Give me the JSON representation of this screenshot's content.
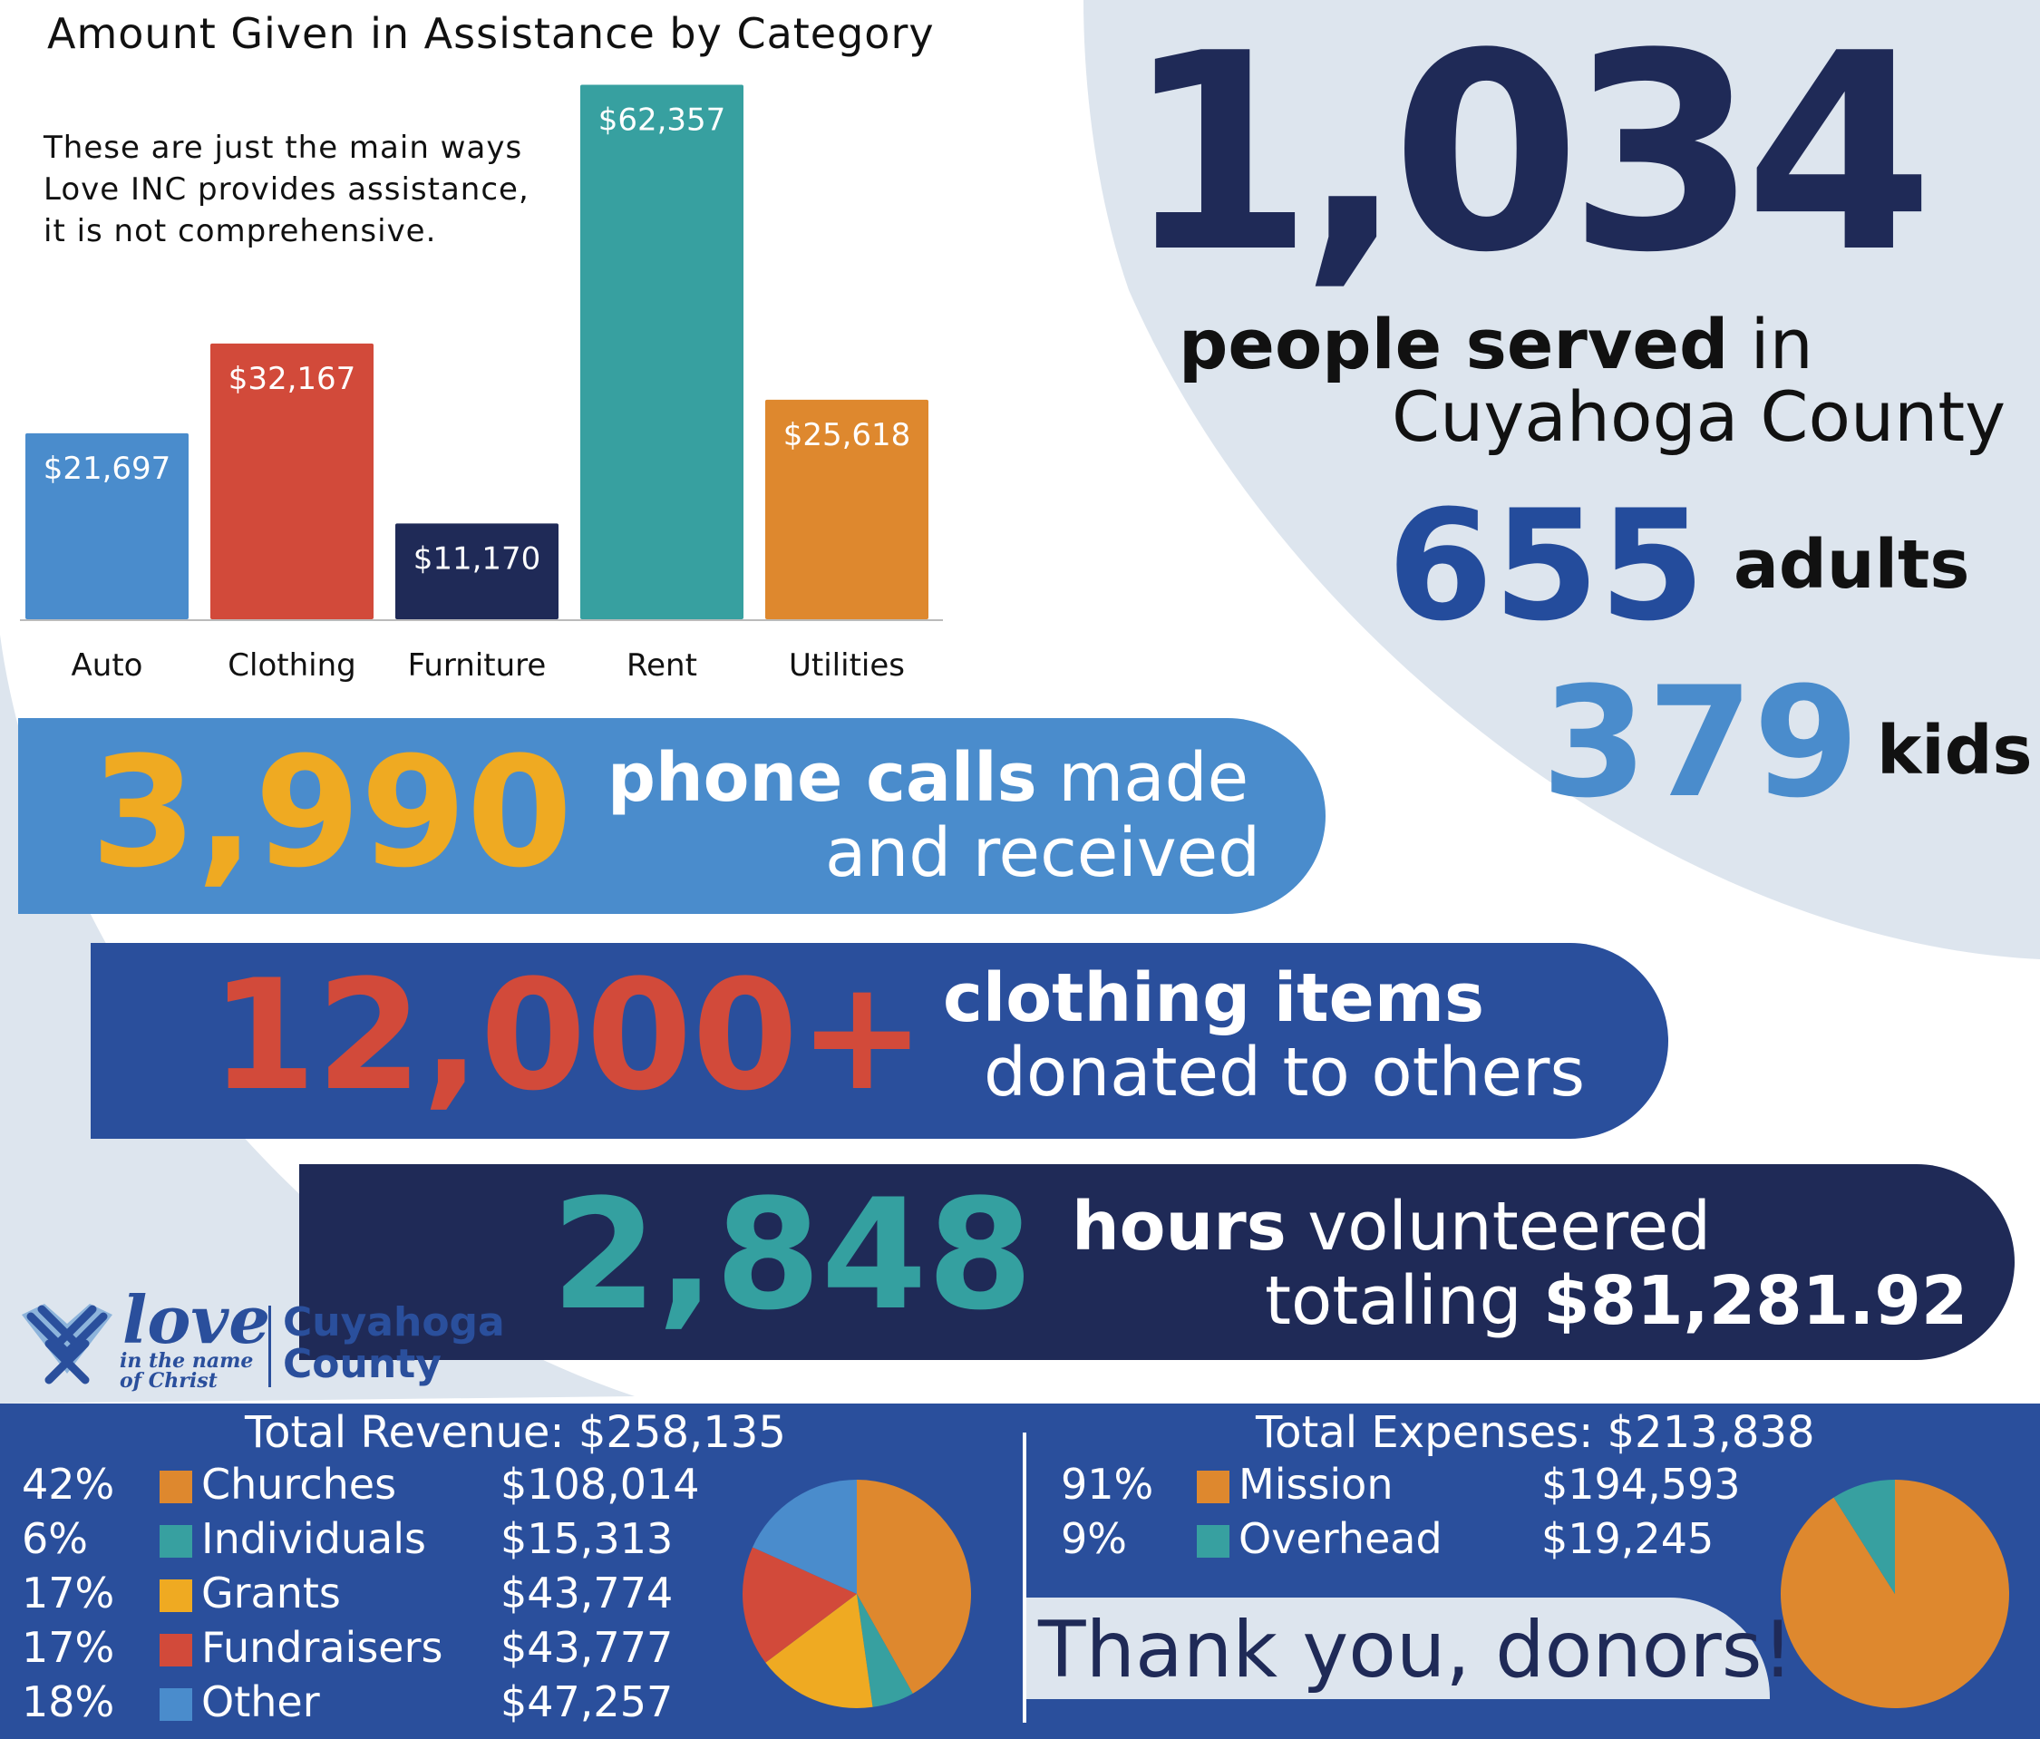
{
  "colors": {
    "navy": "#1f2a57",
    "royal": "#2a4f9c",
    "sky": "#4a8ccc",
    "red": "#d24a3a",
    "teal": "#34a0a0",
    "orange": "#de882e",
    "gold": "#efaa22",
    "light_bg": "#dde5ee"
  },
  "chart_data": [
    {
      "type": "bar",
      "title": "Amount Given in Assistance by Category",
      "categories": [
        "Auto",
        "Clothing",
        "Furniture",
        "Rent",
        "Utilities"
      ],
      "values": [
        21697,
        32167,
        11170,
        62357,
        25618
      ],
      "labels": [
        "$21,697",
        "$32,167",
        "$11,170",
        "$62,357",
        "$25,618"
      ],
      "colors": [
        "#4a8ccc",
        "#d24a3a",
        "#1f2a57",
        "#37a0a0",
        "#de882e"
      ],
      "ylim": [
        0,
        64000
      ],
      "grid": false,
      "note": "These are just the main ways\nLove INC provides assistance,\nit is not comprehensive."
    },
    {
      "type": "pie",
      "title": "Total Revenue: $258,135",
      "slices": [
        {
          "label": "Churches",
          "percent_label": "42%",
          "amount_label": "$108,014",
          "value": 108014,
          "color": "#de882e"
        },
        {
          "label": "Individuals",
          "percent_label": "6%",
          "amount_label": "$15,313",
          "value": 15313,
          "color": "#37a0a0"
        },
        {
          "label": "Grants",
          "percent_label": "17%",
          "amount_label": "$43,774",
          "value": 43774,
          "color": "#efaa22"
        },
        {
          "label": "Fundraisers",
          "percent_label": "17%",
          "amount_label": "$43,777",
          "value": 43777,
          "color": "#d24a3a"
        },
        {
          "label": "Other",
          "percent_label": "18%",
          "amount_label": "$47,257",
          "value": 47257,
          "color": "#4a8ccc"
        }
      ]
    },
    {
      "type": "pie",
      "title": "Total Expenses: $213,838",
      "slices": [
        {
          "label": "Mission",
          "percent_label": "91%",
          "amount_label": "$194,593",
          "value": 194593,
          "color": "#de882e"
        },
        {
          "label": "Overhead",
          "percent_label": "9%",
          "amount_label": "$19,245",
          "value": 19245,
          "color": "#37a0a0"
        }
      ]
    }
  ],
  "stats": {
    "people_num": "1,034",
    "people_label_bold": "people served",
    "people_label_rest": " in",
    "county_label": "Cuyahoga County",
    "adults_num": "655",
    "adults_label": "adults",
    "kids_num": "379",
    "kids_label": "kids",
    "calls_num": "3,990",
    "calls_bold": "phone calls",
    "calls_rest": " made",
    "calls_l2": "and received",
    "clothes_num": "12,000+",
    "clothes_l1": "clothing items",
    "clothes_l2": "donated to others",
    "hours_num": "2,848",
    "hours_bold": "hours",
    "hours_rest": " volunteered",
    "hours_l2_a": "totaling ",
    "hours_l2_b": "$81,281.92"
  },
  "logo": {
    "word": "love",
    "sub": "in the name\nof Christ",
    "county": "Cuyahoga\nCounty",
    "icon": "heart-hands-icon"
  },
  "thanks": "Thank you, donors!"
}
